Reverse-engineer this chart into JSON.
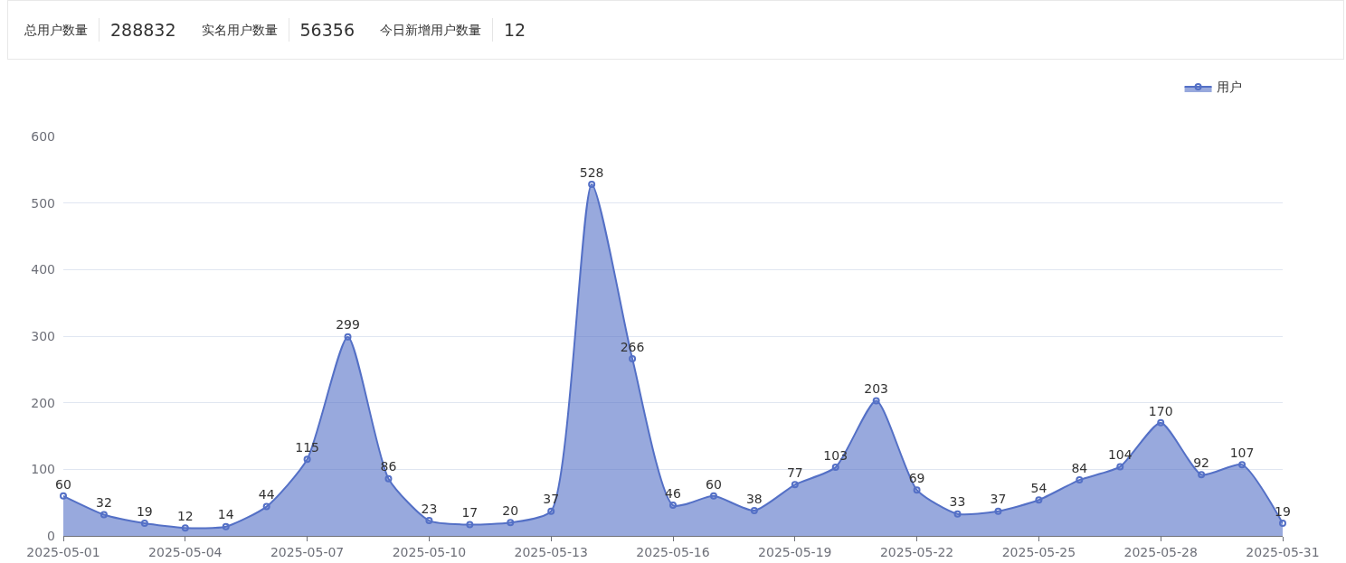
{
  "chart_data": [
    {
      "type": "other",
      "categories": [
        "总用户数量",
        "实名用户数量",
        "今日新增用户数量"
      ],
      "values": [
        288832,
        56356,
        12
      ],
      "data_labels": true
    },
    {
      "type": "area",
      "x": [
        "2025-05-01",
        "2025-05-02",
        "2025-05-03",
        "2025-05-04",
        "2025-05-05",
        "2025-05-06",
        "2025-05-07",
        "2025-05-08",
        "2025-05-09",
        "2025-05-10",
        "2025-05-11",
        "2025-05-12",
        "2025-05-13",
        "2025-05-14",
        "2025-05-15",
        "2025-05-16",
        "2025-05-17",
        "2025-05-18",
        "2025-05-19",
        "2025-05-20",
        "2025-05-21",
        "2025-05-22",
        "2025-05-23",
        "2025-05-24",
        "2025-05-25",
        "2025-05-26",
        "2025-05-27",
        "2025-05-28",
        "2025-05-29",
        "2025-05-30",
        "2025-05-31"
      ],
      "series": [
        {
          "name": "用户",
          "color": "#5470c6",
          "values": [
            60,
            32,
            19,
            12,
            14,
            44,
            115,
            299,
            86,
            23,
            17,
            20,
            37,
            528,
            266,
            46,
            60,
            38,
            77,
            103,
            203,
            69,
            33,
            37,
            54,
            84,
            104,
            170,
            92,
            107,
            19
          ]
        }
      ],
      "xlim": [
        "2025-05-01",
        "2025-05-31"
      ],
      "xticks": [
        {
          "value": "2025-05-01",
          "label": "2025-05-01"
        },
        {
          "value": "2025-05-04",
          "label": "2025-05-04"
        },
        {
          "value": "2025-05-07",
          "label": "2025-05-07"
        },
        {
          "value": "2025-05-10",
          "label": "2025-05-10"
        },
        {
          "value": "2025-05-13",
          "label": "2025-05-13"
        },
        {
          "value": "2025-05-16",
          "label": "2025-05-16"
        },
        {
          "value": "2025-05-19",
          "label": "2025-05-19"
        },
        {
          "value": "2025-05-22",
          "label": "2025-05-22"
        },
        {
          "value": "2025-05-25",
          "label": "2025-05-25"
        },
        {
          "value": "2025-05-28",
          "label": "2025-05-28"
        },
        {
          "value": "2025-05-31",
          "label": "2025-05-31"
        }
      ],
      "ylim": [
        0,
        600
      ],
      "yticks": [
        0,
        100,
        200,
        300,
        400,
        500,
        600
      ],
      "grid": "y",
      "legend": "top right",
      "marker": "circle",
      "line_style": "solid",
      "data_labels": true
    }
  ]
}
